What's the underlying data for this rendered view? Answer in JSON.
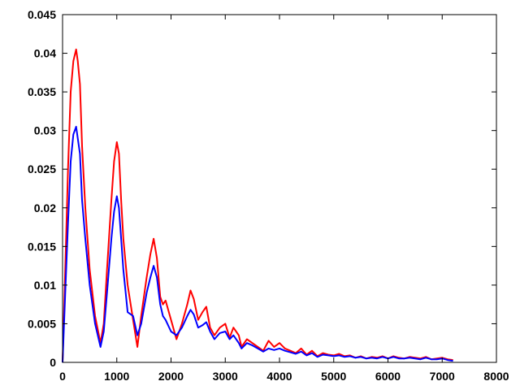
{
  "chart_data": {
    "type": "line",
    "title": "",
    "xlabel": "",
    "ylabel": "",
    "xlim": [
      0,
      8000
    ],
    "ylim": [
      0,
      0.045
    ],
    "xticks": [
      0,
      1000,
      2000,
      3000,
      4000,
      5000,
      6000,
      7000,
      8000
    ],
    "yticks": [
      0,
      0.005,
      0.01,
      0.015,
      0.02,
      0.025,
      0.03,
      0.035,
      0.04,
      0.045
    ],
    "xtick_labels": [
      "0",
      "1000",
      "2000",
      "3000",
      "4000",
      "5000",
      "6000",
      "7000",
      "8000"
    ],
    "ytick_labels": [
      "0",
      "0.005",
      "0.01",
      "0.015",
      "0.02",
      "0.025",
      "0.03",
      "0.035",
      "0.04",
      "0.045"
    ],
    "grid": false,
    "series": [
      {
        "color": "#ff0000",
        "x": [
          0,
          50,
          100,
          150,
          200,
          250,
          280,
          320,
          360,
          420,
          500,
          600,
          700,
          760,
          820,
          900,
          950,
          1000,
          1040,
          1080,
          1120,
          1200,
          1300,
          1380,
          1450,
          1550,
          1620,
          1680,
          1740,
          1800,
          1850,
          1900,
          2000,
          2100,
          2200,
          2300,
          2360,
          2420,
          2500,
          2580,
          2650,
          2720,
          2800,
          2900,
          3000,
          3080,
          3150,
          3250,
          3300,
          3400,
          3500,
          3600,
          3700,
          3800,
          3900,
          4000,
          4100,
          4200,
          4300,
          4400,
          4500,
          4600,
          4700,
          4800,
          4900,
          5000,
          5100,
          5200,
          5300,
          5400,
          5500,
          5600,
          5700,
          5800,
          5900,
          6000,
          6100,
          6200,
          6300,
          6400,
          6500,
          6600,
          6700,
          6800,
          6900,
          7000,
          7100,
          7200
        ],
        "values": [
          0,
          0.012,
          0.025,
          0.035,
          0.039,
          0.0405,
          0.039,
          0.036,
          0.028,
          0.02,
          0.012,
          0.006,
          0.0025,
          0.005,
          0.012,
          0.021,
          0.026,
          0.0285,
          0.027,
          0.021,
          0.016,
          0.01,
          0.0055,
          0.002,
          0.006,
          0.011,
          0.014,
          0.016,
          0.0135,
          0.0085,
          0.0075,
          0.008,
          0.0055,
          0.003,
          0.005,
          0.0075,
          0.0093,
          0.0082,
          0.0055,
          0.0065,
          0.0072,
          0.0045,
          0.0035,
          0.0045,
          0.005,
          0.0032,
          0.0045,
          0.0035,
          0.002,
          0.003,
          0.0025,
          0.002,
          0.0015,
          0.0028,
          0.002,
          0.0025,
          0.0018,
          0.0015,
          0.0012,
          0.0018,
          0.001,
          0.0015,
          0.0008,
          0.0012,
          0.001,
          0.0009,
          0.0011,
          0.0008,
          0.0009,
          0.0006,
          0.0008,
          0.0005,
          0.0007,
          0.0006,
          0.0008,
          0.0005,
          0.0008,
          0.0006,
          0.0005,
          0.0007,
          0.0006,
          0.0005,
          0.0007,
          0.0004,
          0.0005,
          0.0006,
          0.0004,
          0.0003
        ]
      },
      {
        "color": "#0000ff",
        "x": [
          0,
          50,
          100,
          150,
          200,
          250,
          280,
          320,
          360,
          420,
          500,
          600,
          700,
          760,
          820,
          900,
          950,
          1000,
          1040,
          1080,
          1120,
          1200,
          1300,
          1380,
          1450,
          1550,
          1620,
          1680,
          1740,
          1800,
          1850,
          1900,
          2000,
          2100,
          2200,
          2300,
          2360,
          2420,
          2500,
          2580,
          2650,
          2720,
          2800,
          2900,
          3000,
          3080,
          3150,
          3250,
          3300,
          3400,
          3500,
          3600,
          3700,
          3800,
          3900,
          4000,
          4100,
          4200,
          4300,
          4400,
          4500,
          4600,
          4700,
          4800,
          4900,
          5000,
          5100,
          5200,
          5300,
          5400,
          5500,
          5600,
          5700,
          5800,
          5900,
          6000,
          6100,
          6200,
          6300,
          6400,
          6500,
          6600,
          6700,
          6800,
          6900,
          7000,
          7100,
          7200
        ],
        "values": [
          0,
          0.009,
          0.018,
          0.026,
          0.0295,
          0.0305,
          0.029,
          0.027,
          0.021,
          0.016,
          0.01,
          0.005,
          0.002,
          0.004,
          0.009,
          0.016,
          0.0195,
          0.0215,
          0.02,
          0.016,
          0.012,
          0.0065,
          0.006,
          0.0035,
          0.005,
          0.009,
          0.011,
          0.0125,
          0.011,
          0.0075,
          0.006,
          0.0055,
          0.004,
          0.0035,
          0.0045,
          0.006,
          0.0068,
          0.0062,
          0.0045,
          0.0048,
          0.0052,
          0.004,
          0.003,
          0.0038,
          0.004,
          0.003,
          0.0035,
          0.0025,
          0.0018,
          0.0025,
          0.0022,
          0.0018,
          0.0014,
          0.0018,
          0.0016,
          0.0018,
          0.0015,
          0.0013,
          0.0011,
          0.0014,
          0.0009,
          0.0012,
          0.0007,
          0.001,
          0.0009,
          0.0008,
          0.0009,
          0.0007,
          0.0008,
          0.0006,
          0.0007,
          0.0005,
          0.0006,
          0.0005,
          0.0007,
          0.0005,
          0.0007,
          0.0005,
          0.0005,
          0.0006,
          0.0005,
          0.0004,
          0.0006,
          0.0004,
          0.0004,
          0.0005,
          0.0003,
          0.0002
        ]
      }
    ]
  }
}
